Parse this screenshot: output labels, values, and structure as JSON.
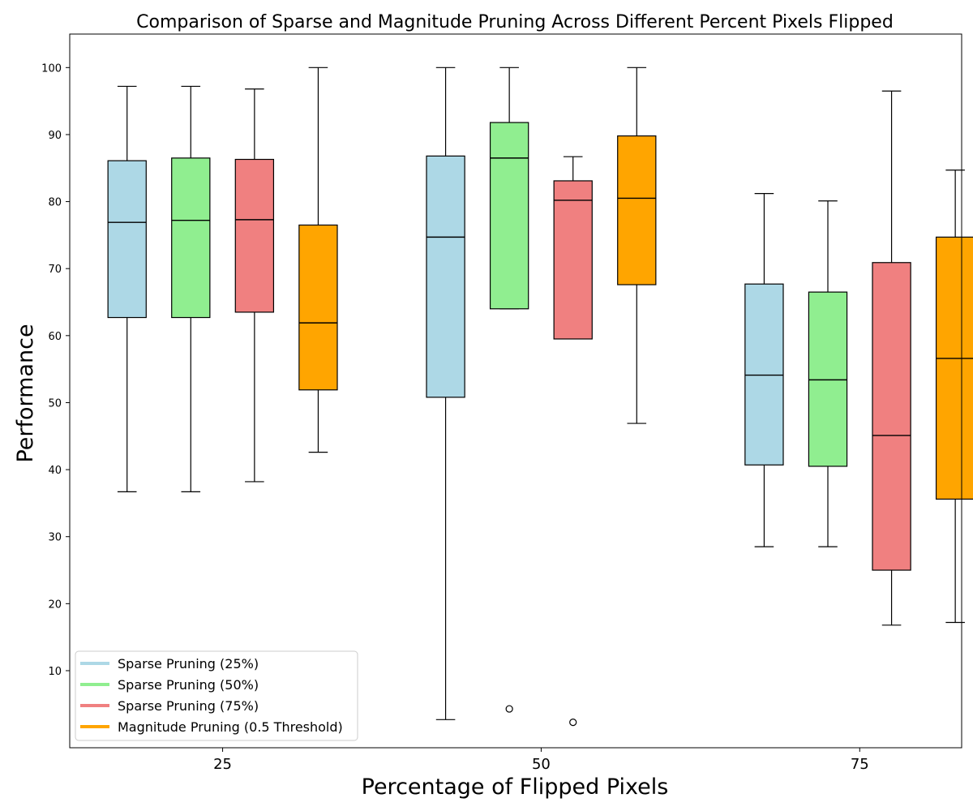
{
  "chart_data": {
    "type": "box",
    "title": "Comparison of Sparse and Magnitude Pruning Across Different Percent Pixels Flipped",
    "xlabel": "Percentage of Flipped Pixels",
    "ylabel": "Performance",
    "categories": [
      "25",
      "50",
      "75"
    ],
    "yticks": [
      10,
      20,
      30,
      40,
      50,
      60,
      70,
      80,
      90,
      100
    ],
    "ylim": [
      -1.5,
      105
    ],
    "legend_position": "lower-left",
    "grid": false,
    "series": [
      {
        "name": "Sparse Pruning (25%)",
        "color": "#add8e6",
        "boxes": [
          {
            "whislo": 36.7,
            "q1": 62.7,
            "med": 76.9,
            "q3": 86.1,
            "whishi": 97.2,
            "fliers": []
          },
          {
            "whislo": 2.7,
            "q1": 50.8,
            "med": 74.7,
            "q3": 86.8,
            "whishi": 100,
            "fliers": []
          },
          {
            "whislo": 28.5,
            "q1": 40.7,
            "med": 54.1,
            "q3": 67.7,
            "whishi": 81.2,
            "fliers": []
          }
        ]
      },
      {
        "name": "Sparse Pruning (50%)",
        "color": "#90ee90",
        "boxes": [
          {
            "whislo": 36.7,
            "q1": 62.7,
            "med": 77.2,
            "q3": 86.5,
            "whishi": 97.2,
            "fliers": []
          },
          {
            "whislo": 64.0,
            "q1": 64.0,
            "med": 86.5,
            "q3": 91.8,
            "whishi": 100,
            "fliers": [
              4.3
            ]
          },
          {
            "whislo": 28.5,
            "q1": 40.5,
            "med": 53.4,
            "q3": 66.5,
            "whishi": 80.1,
            "fliers": []
          }
        ]
      },
      {
        "name": "Sparse Pruning (75%)",
        "color": "#f08080",
        "boxes": [
          {
            "whislo": 38.2,
            "q1": 63.5,
            "med": 77.3,
            "q3": 86.3,
            "whishi": 96.8,
            "fliers": []
          },
          {
            "whislo": 59.5,
            "q1": 59.5,
            "med": 80.2,
            "q3": 83.1,
            "whishi": 86.7,
            "fliers": [
              2.3
            ]
          },
          {
            "whislo": 16.8,
            "q1": 25.0,
            "med": 45.1,
            "q3": 70.9,
            "whishi": 96.5,
            "fliers": []
          }
        ]
      },
      {
        "name": "Magnitude Pruning (0.5 Threshold)",
        "color": "#ffa500",
        "boxes": [
          {
            "whislo": 42.6,
            "q1": 51.9,
            "med": 61.9,
            "q3": 76.5,
            "whishi": 100,
            "fliers": []
          },
          {
            "whislo": 46.9,
            "q1": 67.6,
            "med": 80.5,
            "q3": 89.8,
            "whishi": 100,
            "fliers": []
          },
          {
            "whislo": 17.2,
            "q1": 35.6,
            "med": 56.6,
            "q3": 74.7,
            "whishi": 84.7,
            "fliers": []
          }
        ]
      }
    ]
  }
}
